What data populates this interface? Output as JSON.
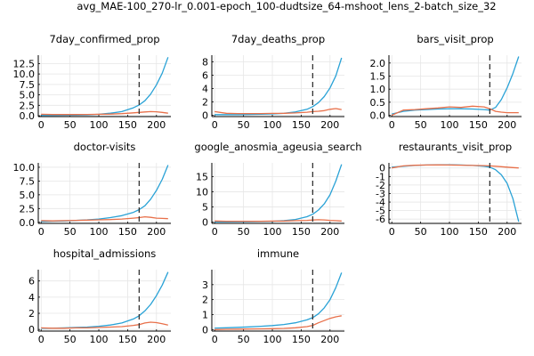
{
  "figure_title": "avg_MAE-100_270-lr_0.001-epoch_100-dudtsize_64-mshoot_lens_2-batch_size_32",
  "colors": {
    "series_1": "#2aa2d6",
    "series_2": "#e8704a",
    "cutoff": "#333333",
    "grid": "#e6e6e6",
    "axis": "#000000"
  },
  "chart_data": [
    {
      "type": "line",
      "title": "7day_confirmed_prop",
      "xlim": [
        -5,
        225
      ],
      "ylim": [
        -0.2,
        14.5
      ],
      "xticks": [
        0,
        50,
        100,
        150,
        200
      ],
      "yticks": [
        0.0,
        2.5,
        5.0,
        7.5,
        10.0,
        12.5
      ],
      "ytick_labels": [
        "0.0",
        "2.5",
        "5.0",
        "7.5",
        "10.0",
        "12.5"
      ],
      "vline_x": 170,
      "series": [
        {
          "x": [
            0,
            20,
            40,
            60,
            80,
            100,
            120,
            140,
            160,
            170,
            180,
            190,
            200,
            210,
            220
          ],
          "values": [
            0.1,
            0.1,
            0.12,
            0.15,
            0.2,
            0.35,
            0.6,
            1.0,
            1.9,
            2.6,
            3.6,
            5.2,
            7.4,
            10.2,
            14.0
          ]
        },
        {
          "x": [
            0,
            20,
            40,
            60,
            80,
            100,
            120,
            140,
            160,
            170,
            180,
            190,
            200,
            210,
            220
          ],
          "values": [
            0.35,
            0.3,
            0.3,
            0.3,
            0.32,
            0.35,
            0.4,
            0.5,
            0.7,
            0.8,
            0.9,
            1.0,
            0.95,
            0.8,
            0.6
          ]
        }
      ]
    },
    {
      "type": "line",
      "title": "7day_deaths_prop",
      "xlim": [
        -5,
        225
      ],
      "ylim": [
        -0.2,
        9.0
      ],
      "xticks": [
        0,
        50,
        100,
        150,
        200
      ],
      "yticks": [
        0,
        2,
        4,
        6,
        8
      ],
      "ytick_labels": [
        "0",
        "2",
        "4",
        "6",
        "8"
      ],
      "vline_x": 170,
      "series": [
        {
          "x": [
            0,
            20,
            40,
            60,
            80,
            100,
            120,
            140,
            160,
            170,
            180,
            190,
            200,
            210,
            220
          ],
          "values": [
            0.1,
            0.1,
            0.1,
            0.12,
            0.15,
            0.2,
            0.3,
            0.5,
            0.9,
            1.3,
            1.9,
            2.8,
            4.1,
            5.9,
            8.6
          ]
        },
        {
          "x": [
            0,
            20,
            40,
            60,
            80,
            100,
            120,
            140,
            160,
            170,
            180,
            190,
            200,
            210,
            220
          ],
          "values": [
            0.55,
            0.3,
            0.25,
            0.25,
            0.25,
            0.28,
            0.3,
            0.35,
            0.45,
            0.55,
            0.6,
            0.7,
            0.9,
            1.0,
            0.85
          ]
        }
      ]
    },
    {
      "type": "line",
      "title": "bars_visit_prop",
      "xlim": [
        -5,
        225
      ],
      "ylim": [
        -0.05,
        2.3
      ],
      "xticks": [
        0,
        50,
        100,
        150,
        200
      ],
      "yticks": [
        0.0,
        0.5,
        1.0,
        1.5,
        2.0
      ],
      "ytick_labels": [
        "0.0",
        "0.5",
        "1.0",
        "1.5",
        "2.0"
      ],
      "vline_x": 170,
      "series": [
        {
          "x": [
            0,
            20,
            40,
            60,
            80,
            100,
            120,
            140,
            160,
            170,
            180,
            190,
            200,
            210,
            220
          ],
          "values": [
            0.05,
            0.15,
            0.2,
            0.22,
            0.24,
            0.25,
            0.25,
            0.24,
            0.22,
            0.2,
            0.3,
            0.6,
            1.05,
            1.6,
            2.25
          ]
        },
        {
          "x": [
            0,
            20,
            40,
            60,
            80,
            100,
            120,
            140,
            160,
            170,
            180,
            190,
            200,
            210,
            220
          ],
          "values": [
            0.0,
            0.2,
            0.22,
            0.25,
            0.28,
            0.32,
            0.3,
            0.35,
            0.32,
            0.25,
            0.15,
            0.12,
            0.1,
            0.1,
            0.1
          ]
        }
      ]
    },
    {
      "type": "line",
      "title": "doctor-visits",
      "xlim": [
        -5,
        225
      ],
      "ylim": [
        -0.2,
        10.8
      ],
      "xticks": [
        0,
        50,
        100,
        150,
        200
      ],
      "yticks": [
        0.0,
        2.5,
        5.0,
        7.5,
        10.0
      ],
      "ytick_labels": [
        "0.0",
        "2.5",
        "5.0",
        "7.5",
        "10.0"
      ],
      "vline_x": 170,
      "series": [
        {
          "x": [
            0,
            20,
            40,
            60,
            80,
            100,
            120,
            140,
            160,
            170,
            180,
            190,
            200,
            210,
            220
          ],
          "values": [
            0.15,
            0.2,
            0.25,
            0.35,
            0.45,
            0.6,
            0.85,
            1.2,
            1.8,
            2.3,
            3.0,
            4.2,
            5.8,
            7.8,
            10.4
          ]
        },
        {
          "x": [
            0,
            20,
            40,
            60,
            80,
            100,
            120,
            140,
            160,
            170,
            180,
            190,
            200,
            210,
            220
          ],
          "values": [
            0.3,
            0.25,
            0.3,
            0.35,
            0.4,
            0.45,
            0.5,
            0.6,
            0.75,
            0.85,
            1.0,
            0.9,
            0.75,
            0.7,
            0.65
          ]
        }
      ]
    },
    {
      "type": "line",
      "title": "google_anosmia_ageusia_search",
      "xlim": [
        -5,
        225
      ],
      "ylim": [
        -0.4,
        19.5
      ],
      "xticks": [
        0,
        50,
        100,
        150,
        200
      ],
      "yticks": [
        0,
        5,
        10,
        15
      ],
      "ytick_labels": [
        "0",
        "5",
        "10",
        "15"
      ],
      "vline_x": 170,
      "series": [
        {
          "x": [
            0,
            20,
            40,
            60,
            80,
            100,
            120,
            140,
            160,
            170,
            180,
            190,
            200,
            210,
            220
          ],
          "values": [
            0.1,
            0.1,
            0.12,
            0.15,
            0.2,
            0.3,
            0.5,
            0.9,
            1.8,
            2.6,
            4.0,
            6.0,
            9.0,
            13.5,
            19.0
          ]
        },
        {
          "x": [
            0,
            20,
            40,
            60,
            80,
            100,
            120,
            140,
            160,
            170,
            180,
            190,
            200,
            210,
            220
          ],
          "values": [
            0.4,
            0.3,
            0.3,
            0.3,
            0.3,
            0.35,
            0.4,
            0.5,
            0.6,
            0.7,
            0.8,
            0.75,
            0.6,
            0.5,
            0.4
          ]
        }
      ]
    },
    {
      "type": "line",
      "title": "restaurants_visit_prop",
      "xlim": [
        -5,
        225
      ],
      "ylim": [
        -6.5,
        0.6
      ],
      "xticks": [
        0,
        50,
        100,
        150,
        200
      ],
      "yticks": [
        0,
        -1,
        -2,
        -3,
        -4,
        -5,
        -6
      ],
      "ytick_labels": [
        "0",
        "-1",
        "-2",
        "-3",
        "-4",
        "-5",
        "-6"
      ],
      "vline_x": 170,
      "series": [
        {
          "x": [
            0,
            20,
            40,
            60,
            80,
            100,
            120,
            140,
            160,
            170,
            180,
            190,
            200,
            210,
            220
          ],
          "values": [
            0.1,
            0.2,
            0.3,
            0.35,
            0.38,
            0.38,
            0.35,
            0.3,
            0.2,
            0.1,
            -0.2,
            -0.8,
            -1.8,
            -3.6,
            -6.3
          ]
        },
        {
          "x": [
            0,
            20,
            40,
            60,
            80,
            100,
            120,
            140,
            160,
            170,
            180,
            190,
            200,
            210,
            220
          ],
          "values": [
            0.0,
            0.25,
            0.32,
            0.35,
            0.36,
            0.35,
            0.33,
            0.3,
            0.28,
            0.25,
            0.2,
            0.15,
            0.1,
            0.05,
            0.0
          ]
        }
      ]
    },
    {
      "type": "line",
      "title": "hospital_admissions",
      "xlim": [
        -5,
        225
      ],
      "ylim": [
        -0.2,
        7.4
      ],
      "xticks": [
        0,
        50,
        100,
        150,
        200
      ],
      "yticks": [
        0,
        2,
        4,
        6
      ],
      "ytick_labels": [
        "0",
        "2",
        "4",
        "6"
      ],
      "vline_x": 170,
      "series": [
        {
          "x": [
            0,
            20,
            40,
            60,
            80,
            100,
            120,
            140,
            160,
            170,
            180,
            190,
            200,
            210,
            220
          ],
          "values": [
            0.15,
            0.15,
            0.2,
            0.25,
            0.3,
            0.4,
            0.55,
            0.8,
            1.3,
            1.7,
            2.3,
            3.1,
            4.2,
            5.5,
            7.1
          ]
        },
        {
          "x": [
            0,
            20,
            40,
            60,
            80,
            100,
            120,
            140,
            160,
            170,
            180,
            190,
            200,
            210,
            220
          ],
          "values": [
            0.2,
            0.15,
            0.15,
            0.2,
            0.2,
            0.25,
            0.3,
            0.35,
            0.5,
            0.6,
            0.8,
            0.9,
            0.85,
            0.7,
            0.55
          ]
        }
      ]
    },
    {
      "type": "line",
      "title": "immune",
      "xlim": [
        -5,
        225
      ],
      "ylim": [
        -0.1,
        4.0
      ],
      "xticks": [
        0,
        50,
        100,
        150,
        200
      ],
      "yticks": [
        0,
        1,
        2,
        3
      ],
      "ytick_labels": [
        "0",
        "1",
        "2",
        "3"
      ],
      "vline_x": 170,
      "series": [
        {
          "x": [
            0,
            20,
            40,
            60,
            80,
            100,
            120,
            140,
            160,
            170,
            180,
            190,
            200,
            210,
            220
          ],
          "values": [
            0.1,
            0.12,
            0.15,
            0.18,
            0.22,
            0.27,
            0.34,
            0.45,
            0.65,
            0.8,
            1.05,
            1.45,
            2.0,
            2.8,
            3.8
          ]
        },
        {
          "x": [
            0,
            20,
            40,
            60,
            80,
            100,
            120,
            140,
            160,
            170,
            180,
            190,
            200,
            210,
            220
          ],
          "values": [
            0.0,
            0.02,
            0.03,
            0.04,
            0.05,
            0.06,
            0.08,
            0.12,
            0.2,
            0.28,
            0.45,
            0.6,
            0.75,
            0.85,
            0.92
          ]
        }
      ]
    }
  ]
}
